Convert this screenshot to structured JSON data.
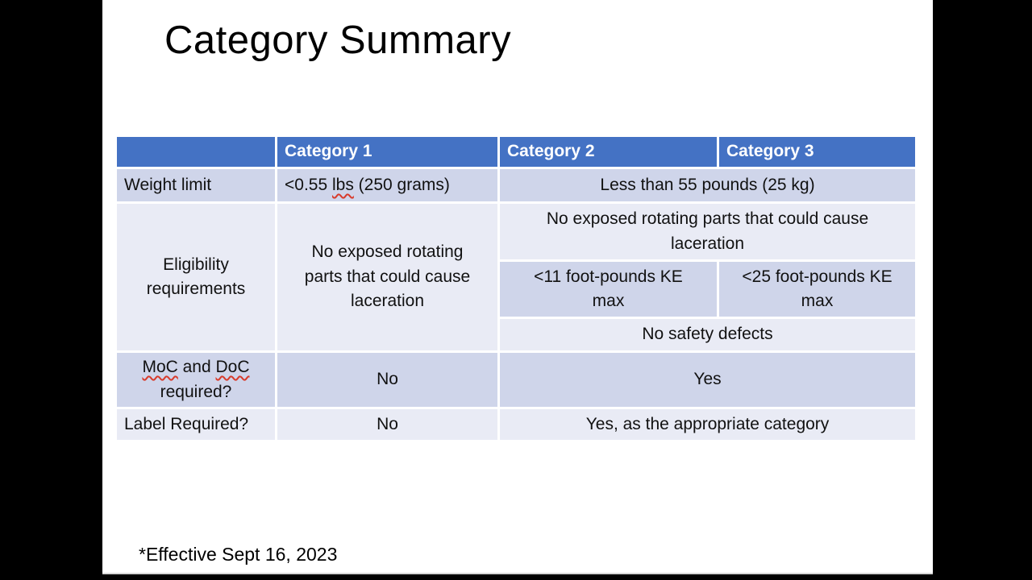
{
  "slide": {
    "title": "Category Summary",
    "footnote": "*Effective Sept 16, 2023"
  },
  "colors": {
    "header_bg": "#4472C4",
    "band_dark": "#CFD5EA",
    "band_light": "#E9EBF5",
    "header_text": "#FFFFFF",
    "body_text": "#111111",
    "squiggle": "#D83B2B",
    "letterbox": "#000000",
    "slide_bg": "#FFFFFF",
    "table_border": "#FFFFFF"
  },
  "table": {
    "headers": [
      {
        "label": ""
      },
      {
        "label": "Category 1"
      },
      {
        "label": "Category 2"
      },
      {
        "label": "Category 3"
      }
    ],
    "weight_row": {
      "label": "Weight limit",
      "cat1_parts": [
        {
          "text": "<0.55 "
        },
        {
          "text": "lbs",
          "misspelled": true
        },
        {
          "text": " (250 grams)"
        }
      ],
      "cat2_3": "Less than 55 pounds (25 kg)"
    },
    "eligibility_row": {
      "label": "Eligibility\nrequirements",
      "cat1": "No exposed rotating\nparts that could cause\nlaceration",
      "cat2_3_top": "No exposed rotating parts that could cause\nlaceration",
      "cat2_ke": "<11 foot-pounds KE\nmax",
      "cat3_ke": "<25 foot-pounds KE\nmax",
      "cat2_3_bottom": "No safety defects"
    },
    "moc_row": {
      "label_parts": [
        {
          "text": "MoC",
          "misspelled": true
        },
        {
          "text": " and "
        },
        {
          "text": "DoC",
          "misspelled": true
        },
        {
          "text": "\nrequired?"
        }
      ],
      "cat1": "No",
      "cat2_3": "Yes"
    },
    "label_row": {
      "label": "Label Required?",
      "cat1": "No",
      "cat2_3": "Yes, as the appropriate category"
    }
  }
}
